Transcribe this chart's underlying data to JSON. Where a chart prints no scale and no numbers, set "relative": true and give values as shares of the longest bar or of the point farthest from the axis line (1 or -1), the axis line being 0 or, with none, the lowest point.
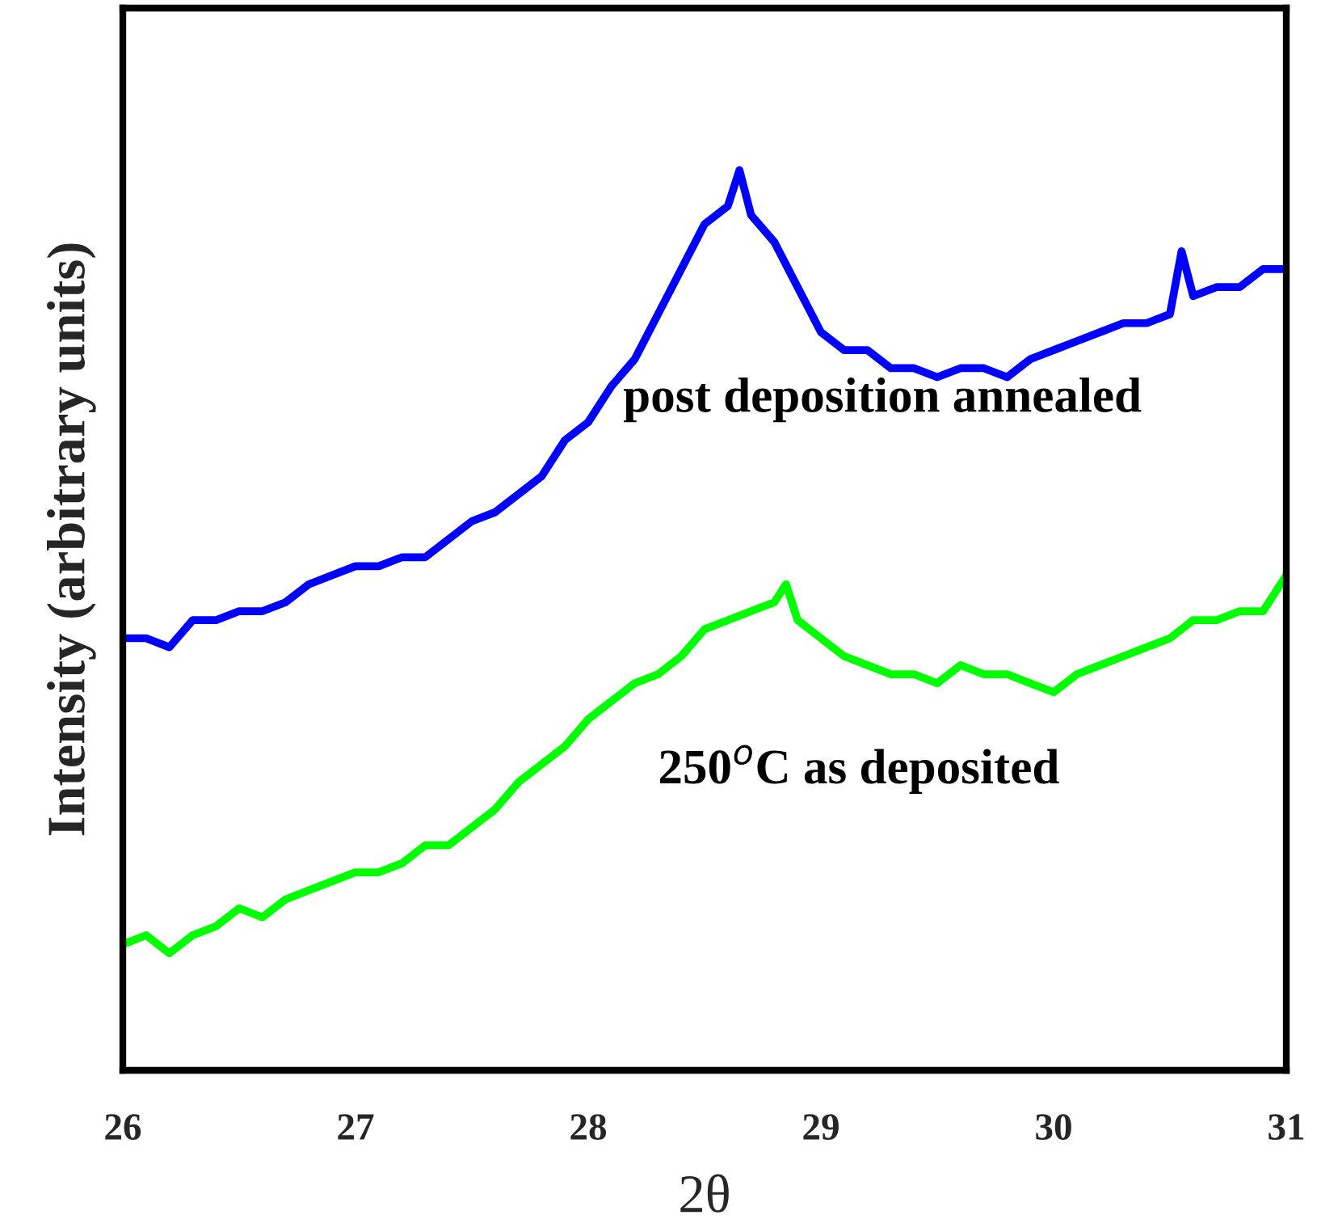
{
  "chart_data": {
    "type": "line",
    "xlabel": "2θ",
    "ylabel": "Intensity (arbitrary units)",
    "relative": true,
    "xlim": [
      26,
      31
    ],
    "xticks": [
      26,
      27,
      28,
      29,
      30,
      31
    ],
    "grid": false,
    "legend": false,
    "marker": "none",
    "line_style": "solid",
    "x": [
      26.0,
      26.1,
      26.2,
      26.3,
      26.4,
      26.5,
      26.6,
      26.7,
      26.8,
      26.9,
      27.0,
      27.1,
      27.2,
      27.3,
      27.4,
      27.5,
      27.6,
      27.7,
      27.8,
      27.9,
      28.0,
      28.1,
      28.2,
      28.3,
      28.4,
      28.5,
      28.6,
      28.65,
      28.7,
      28.8,
      28.9,
      29.0,
      29.1,
      29.2,
      29.3,
      29.4,
      29.5,
      29.6,
      29.7,
      29.8,
      29.9,
      30.0,
      30.1,
      30.2,
      30.3,
      30.4,
      30.5,
      30.55,
      30.6,
      30.7,
      30.8,
      30.9,
      31.0
    ],
    "series": [
      {
        "name": "post deposition annealed",
        "color": "#0000ff",
        "values": [
          0.48,
          0.48,
          0.47,
          0.5,
          0.5,
          0.51,
          0.51,
          0.52,
          0.54,
          0.55,
          0.56,
          0.56,
          0.57,
          0.57,
          0.59,
          0.61,
          0.62,
          0.64,
          0.66,
          0.7,
          0.72,
          0.76,
          0.79,
          0.84,
          0.89,
          0.94,
          0.96,
          1.0,
          0.95,
          0.92,
          0.87,
          0.82,
          0.8,
          0.8,
          0.78,
          0.78,
          0.77,
          0.78,
          0.78,
          0.77,
          0.79,
          0.8,
          0.81,
          0.82,
          0.83,
          0.83,
          0.84,
          0.91,
          0.86,
          0.87,
          0.87,
          0.89,
          0.89
        ]
      },
      {
        "name": "250$^{o}$C as deposited",
        "color": "#00ff00",
        "x": [
          26.0,
          26.1,
          26.2,
          26.3,
          26.4,
          26.5,
          26.6,
          26.7,
          26.8,
          26.9,
          27.0,
          27.1,
          27.2,
          27.3,
          27.4,
          27.5,
          27.6,
          27.7,
          27.8,
          27.9,
          28.0,
          28.1,
          28.2,
          28.3,
          28.4,
          28.5,
          28.6,
          28.7,
          28.8,
          28.85,
          28.9,
          29.0,
          29.1,
          29.2,
          29.3,
          29.4,
          29.5,
          29.6,
          29.7,
          29.8,
          29.9,
          30.0,
          30.1,
          30.2,
          30.3,
          30.4,
          30.5,
          30.6,
          30.7,
          30.8,
          30.9,
          31.0
        ],
        "values": [
          0.14,
          0.15,
          0.13,
          0.15,
          0.16,
          0.18,
          0.17,
          0.19,
          0.2,
          0.21,
          0.22,
          0.22,
          0.23,
          0.25,
          0.25,
          0.27,
          0.29,
          0.32,
          0.34,
          0.36,
          0.39,
          0.41,
          0.43,
          0.44,
          0.46,
          0.49,
          0.5,
          0.51,
          0.52,
          0.54,
          0.5,
          0.48,
          0.46,
          0.45,
          0.44,
          0.44,
          0.43,
          0.45,
          0.44,
          0.44,
          0.43,
          0.42,
          0.44,
          0.45,
          0.46,
          0.47,
          0.48,
          0.5,
          0.5,
          0.51,
          0.51,
          0.55
        ]
      }
    ]
  }
}
